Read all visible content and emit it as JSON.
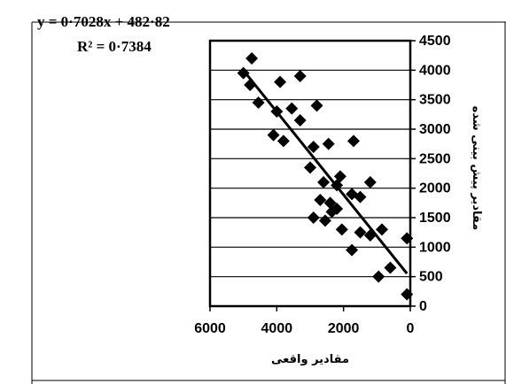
{
  "chart_data": {
    "type": "scatter",
    "title": "",
    "trendline": {
      "equation": "y = 0·7028x + 482·82",
      "r_squared": "R² = 0·7384",
      "slope": 0.7028,
      "intercept": 482.82
    },
    "xlabel": "مقادير واقعى",
    "ylabel": "مقادير پيش بينى شده",
    "x_axis": {
      "reversed": true,
      "range": [
        0,
        6000
      ],
      "ticks": [
        "6000",
        "4000",
        "2000",
        "0"
      ]
    },
    "y_axis": {
      "position": "right",
      "range": [
        0,
        4500
      ],
      "ticks": [
        "0",
        "500",
        "1000",
        "1500",
        "2000",
        "2500",
        "3000",
        "3500",
        "4000",
        "4500"
      ]
    },
    "grid": "horizontal",
    "legend": "none",
    "marker": "diamond",
    "colors": {
      "marker": "#000000",
      "trendline": "#000000",
      "axis": "#000000"
    },
    "points": [
      [
        4750,
        4200
      ],
      [
        5000,
        3950
      ],
      [
        4800,
        3750
      ],
      [
        3900,
        3800
      ],
      [
        3300,
        3900
      ],
      [
        4550,
        3450
      ],
      [
        4000,
        3300
      ],
      [
        3550,
        3350
      ],
      [
        3300,
        3150
      ],
      [
        2800,
        3400
      ],
      [
        4100,
        2900
      ],
      [
        3800,
        2800
      ],
      [
        2900,
        2700
      ],
      [
        2450,
        2750
      ],
      [
        1700,
        2800
      ],
      [
        3000,
        2350
      ],
      [
        2600,
        2100
      ],
      [
        2100,
        2200
      ],
      [
        2200,
        2050
      ],
      [
        1750,
        1900
      ],
      [
        1500,
        1850
      ],
      [
        1200,
        2100
      ],
      [
        2700,
        1800
      ],
      [
        2400,
        1750
      ],
      [
        2200,
        1650
      ],
      [
        2350,
        1600
      ],
      [
        2900,
        1500
      ],
      [
        2550,
        1450
      ],
      [
        2050,
        1300
      ],
      [
        1500,
        1250
      ],
      [
        1200,
        1200
      ],
      [
        850,
        1300
      ],
      [
        1750,
        950
      ],
      [
        950,
        500
      ],
      [
        600,
        650
      ],
      [
        100,
        1150
      ],
      [
        100,
        200
      ]
    ]
  }
}
